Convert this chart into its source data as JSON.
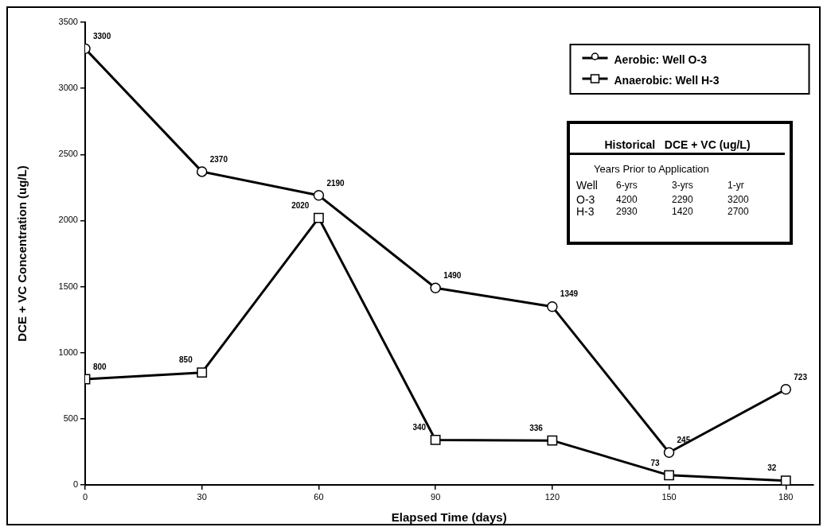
{
  "chart_data": {
    "type": "line",
    "xlabel": "Elapsed Time (days)",
    "ylabel": "DCE + VC Concentration (ug/L)",
    "x": [
      0,
      30,
      60,
      90,
      120,
      150,
      180
    ],
    "series": [
      {
        "name": "Aerobic: Well O-3",
        "color": "#000000",
        "marker": "circle",
        "values": [
          3300,
          2370,
          2190,
          1490,
          1349,
          245,
          723
        ]
      },
      {
        "name": "Anaerobic: Well H-3",
        "color": "#000000",
        "marker": "square",
        "values": [
          800,
          850,
          2020,
          340,
          336,
          73,
          32
        ]
      }
    ],
    "xlim": [
      0,
      187
    ],
    "xticks": [
      0,
      30,
      60,
      90,
      120,
      150,
      180
    ],
    "ylim": [
      0,
      3500
    ],
    "yticks": [
      0,
      500,
      1000,
      1500,
      2000,
      2500,
      3000,
      3500
    ],
    "grid": false,
    "legend": "top right",
    "data_labels": true,
    "line_style": "solid",
    "annotations": [
      "Historical   DCE + VC (ug/L)",
      "Years Prior to Application",
      "Well",
      "6-yrs",
      "3-yrs",
      "1-yr",
      "O-3",
      "4200",
      "2290",
      "3200",
      "H-3",
      "2930",
      "1420",
      "2700"
    ]
  }
}
